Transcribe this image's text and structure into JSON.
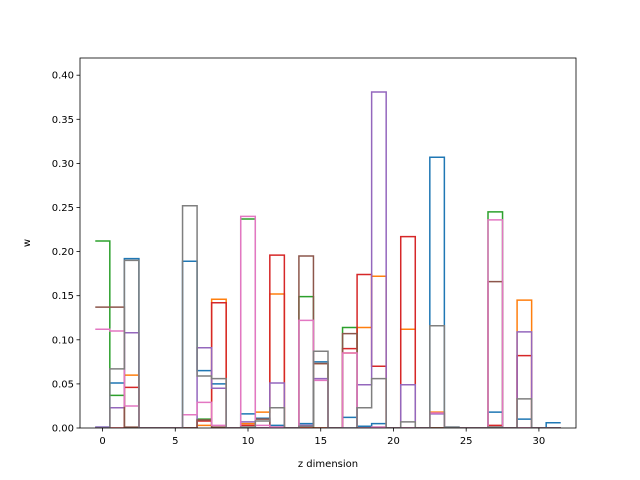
{
  "chart_data": {
    "type": "step",
    "title": "",
    "xlabel": "z dimension",
    "ylabel": "w",
    "xlim": [
      -1.55,
      32.55
    ],
    "ylim": [
      0,
      0.4195
    ],
    "xticks": [
      0,
      5,
      10,
      15,
      20,
      25,
      30
    ],
    "yticks": [
      0.0,
      0.05,
      0.1,
      0.15,
      0.2,
      0.25,
      0.3,
      0.35,
      0.4
    ],
    "ytick_labels": [
      "0.00",
      "0.05",
      "0.10",
      "0.15",
      "0.20",
      "0.25",
      "0.30",
      "0.35",
      "0.40"
    ],
    "grid": false,
    "step_style": "mid",
    "x": [
      0,
      1,
      2,
      3,
      4,
      5,
      6,
      7,
      8,
      9,
      10,
      11,
      12,
      13,
      14,
      15,
      16,
      17,
      18,
      19,
      20,
      21,
      22,
      23,
      24,
      25,
      26,
      27,
      28,
      29,
      30,
      31
    ],
    "series": [
      {
        "color": "#1f77b4",
        "values": [
          0.001,
          0.051,
          0.192,
          0,
          0,
          0,
          0.189,
          0.065,
          0.05,
          0,
          0.016,
          0.011,
          0.003,
          0,
          0.005,
          0.075,
          0,
          0.012,
          0.002,
          0.005,
          0,
          0,
          0,
          0.307,
          0.001,
          0,
          0,
          0.018,
          0,
          0.01,
          0,
          0.006
        ]
      },
      {
        "color": "#ff7f0e",
        "values": [
          0,
          0.023,
          0.06,
          0,
          0,
          0,
          0,
          0.003,
          0.146,
          0,
          0.005,
          0.018,
          0.152,
          0,
          0,
          0.073,
          0,
          0.085,
          0.114,
          0.172,
          0,
          0.112,
          0,
          0.018,
          0,
          0,
          0,
          0.001,
          0,
          0.145,
          0,
          0
        ]
      },
      {
        "color": "#2ca02c",
        "values": [
          0.212,
          0.037,
          0,
          0,
          0,
          0,
          0,
          0.01,
          0,
          0,
          0.237,
          0,
          0,
          0,
          0.149,
          0,
          0,
          0.114,
          0,
          0,
          0,
          0,
          0,
          0,
          0,
          0,
          0,
          0.245,
          0,
          0,
          0,
          0
        ]
      },
      {
        "color": "#d62728",
        "values": [
          0,
          0,
          0.046,
          0,
          0,
          0,
          0,
          0.008,
          0.142,
          0,
          0.003,
          0,
          0.196,
          0,
          0,
          0,
          0,
          0.09,
          0.174,
          0.07,
          0,
          0.217,
          0,
          0,
          0,
          0,
          0,
          0.003,
          0,
          0.082,
          0,
          0
        ]
      },
      {
        "color": "#9467bd",
        "values": [
          0.001,
          0.023,
          0.108,
          0,
          0,
          0,
          0,
          0.091,
          0.045,
          0,
          0.007,
          0,
          0.051,
          0,
          0.003,
          0.056,
          0,
          0,
          0.049,
          0.381,
          0,
          0.049,
          0,
          0.016,
          0,
          0,
          0,
          0.001,
          0,
          0.109,
          0,
          0
        ]
      },
      {
        "color": "#8c564b",
        "values": [
          0.137,
          0.137,
          0.001,
          0,
          0,
          0,
          0,
          0.009,
          0.001,
          0,
          0.001,
          0.01,
          0.001,
          0,
          0.195,
          0.073,
          0,
          0.107,
          0,
          0.001,
          0,
          0,
          0,
          0,
          0,
          0,
          0,
          0.166,
          0,
          0,
          0,
          0
        ]
      },
      {
        "color": "#e377c2",
        "values": [
          0.112,
          0.11,
          0.025,
          0,
          0,
          0,
          0.015,
          0.029,
          0.003,
          0,
          0.24,
          0.003,
          0.001,
          0,
          0.122,
          0.054,
          0,
          0.085,
          0,
          0.001,
          0,
          0,
          0,
          0.017,
          0,
          0,
          0,
          0.236,
          0,
          0,
          0,
          0
        ]
      },
      {
        "color": "#7f7f7f",
        "values": [
          0,
          0.067,
          0.19,
          0,
          0,
          0,
          0.252,
          0.059,
          0.056,
          0,
          0.001,
          0.008,
          0.023,
          0,
          0.002,
          0.087,
          0,
          0,
          0.023,
          0.056,
          0,
          0.007,
          0,
          0.116,
          0.001,
          0,
          0,
          0.001,
          0,
          0.033,
          0,
          0
        ]
      }
    ]
  }
}
